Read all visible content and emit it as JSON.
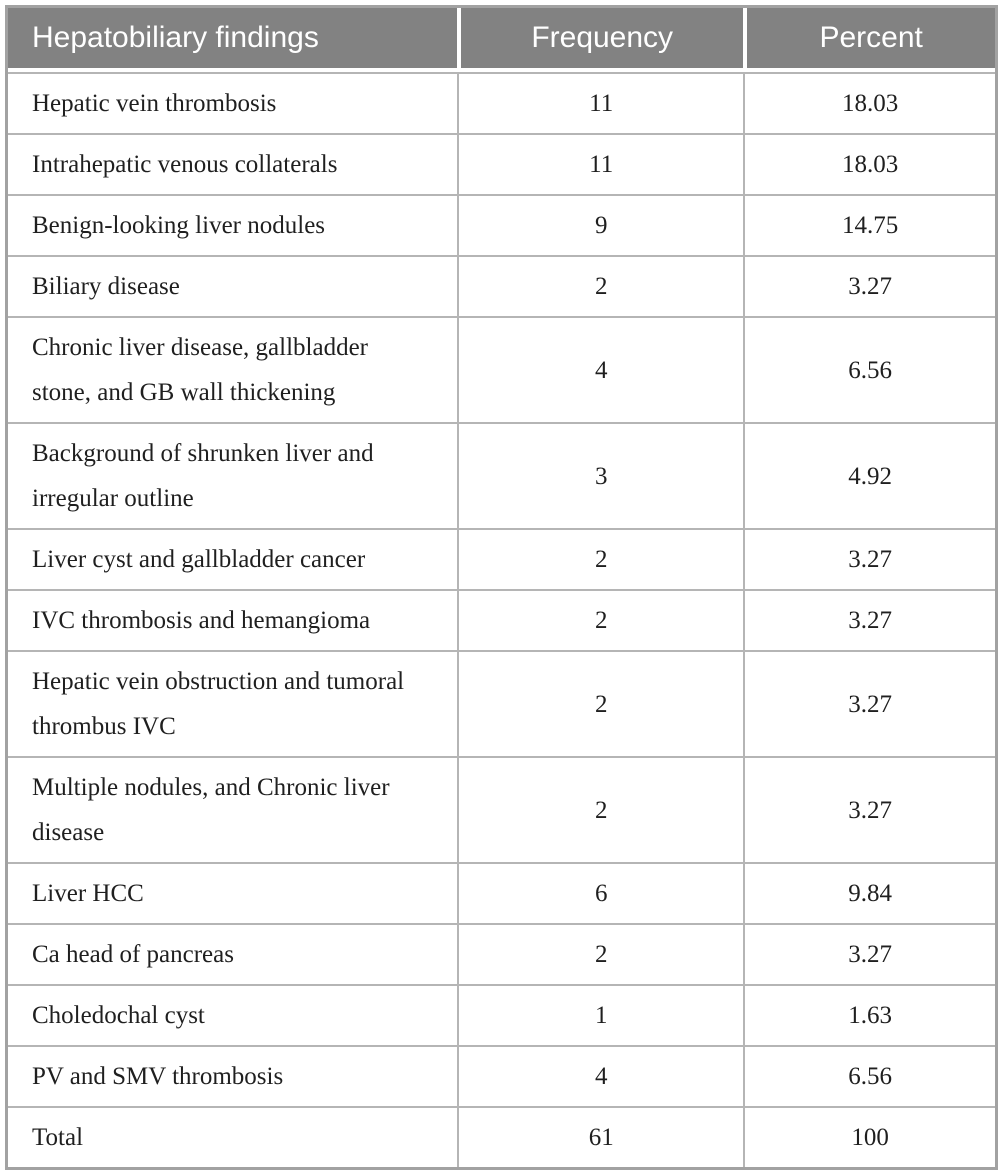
{
  "chart_data": {
    "type": "table",
    "columns": [
      "Hepatobiliary findings",
      "Frequency",
      "Percent"
    ],
    "rows": [
      {
        "finding": "Hepatic vein thrombosis",
        "frequency": "11",
        "percent": "18.03"
      },
      {
        "finding": "Intrahepatic venous collaterals",
        "frequency": "11",
        "percent": "18.03"
      },
      {
        "finding": "Benign-looking liver nodules",
        "frequency": "9",
        "percent": "14.75"
      },
      {
        "finding": "Biliary disease",
        "frequency": "2",
        "percent": "3.27"
      },
      {
        "finding": "Chronic liver disease, gallbladder stone, and GB wall thickening",
        "frequency": "4",
        "percent": "6.56"
      },
      {
        "finding": "Background of shrunken liver and irregular outline",
        "frequency": "3",
        "percent": "4.92"
      },
      {
        "finding": "Liver cyst and gallbladder cancer",
        "frequency": "2",
        "percent": "3.27"
      },
      {
        "finding": "IVC thrombosis and hemangioma",
        "frequency": "2",
        "percent": "3.27"
      },
      {
        "finding": "Hepatic vein obstruction and tumoral thrombus IVC",
        "frequency": "2",
        "percent": "3.27"
      },
      {
        "finding": "Multiple nodules, and Chronic liver disease",
        "frequency": "2",
        "percent": "3.27"
      },
      {
        "finding": "Liver HCC",
        "frequency": "6",
        "percent": "9.84"
      },
      {
        "finding": "Ca head of pancreas",
        "frequency": "2",
        "percent": "3.27"
      },
      {
        "finding": "Choledochal cyst",
        "frequency": "1",
        "percent": "1.63"
      },
      {
        "finding": "PV and SMV thrombosis",
        "frequency": "4",
        "percent": "6.56"
      },
      {
        "finding": "Total",
        "frequency": "61",
        "percent": "100"
      }
    ],
    "layout": {
      "header_align": [
        "left",
        "center",
        "center"
      ],
      "body_align": [
        "left",
        "center",
        "center"
      ]
    }
  },
  "colors": {
    "header_bg": "#828282",
    "header_text": "#ffffff",
    "outer_border": "#a2a2a2",
    "inner_border": "#b5b5b5",
    "body_text": "#1f1f1f",
    "cell_bg": "#ffffff"
  }
}
